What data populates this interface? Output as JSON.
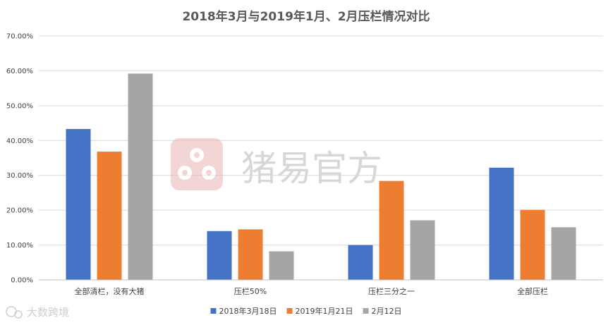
{
  "chart_data": {
    "type": "bar",
    "title": "2018年3月与2019年1月、2月压栏情况对比",
    "categories": [
      "全部清栏，没有大猪",
      "压栏50%",
      "压栏三分之一",
      "全部压栏"
    ],
    "series": [
      {
        "name": "2018年3月18日",
        "color": "#4472c4",
        "values": [
          43.3,
          14.0,
          10.0,
          32.2
        ]
      },
      {
        "name": "2019年1月21日",
        "color": "#ed7d31",
        "values": [
          36.8,
          14.5,
          28.4,
          20.1
        ]
      },
      {
        "name": "2月12日",
        "color": "#a5a5a5",
        "values": [
          59.2,
          8.2,
          17.1,
          15.1
        ]
      }
    ],
    "yticks": [
      "0.00%",
      "10.00%",
      "20.00%",
      "30.00%",
      "40.00%",
      "50.00%",
      "60.00%",
      "70.00%"
    ],
    "ylim": [
      0,
      70
    ],
    "grid": true,
    "legend_position": "bottom"
  },
  "watermark": {
    "text": "猪易官方",
    "logo_color": "#e8a0a0",
    "secondary_text": "大数跨境"
  }
}
